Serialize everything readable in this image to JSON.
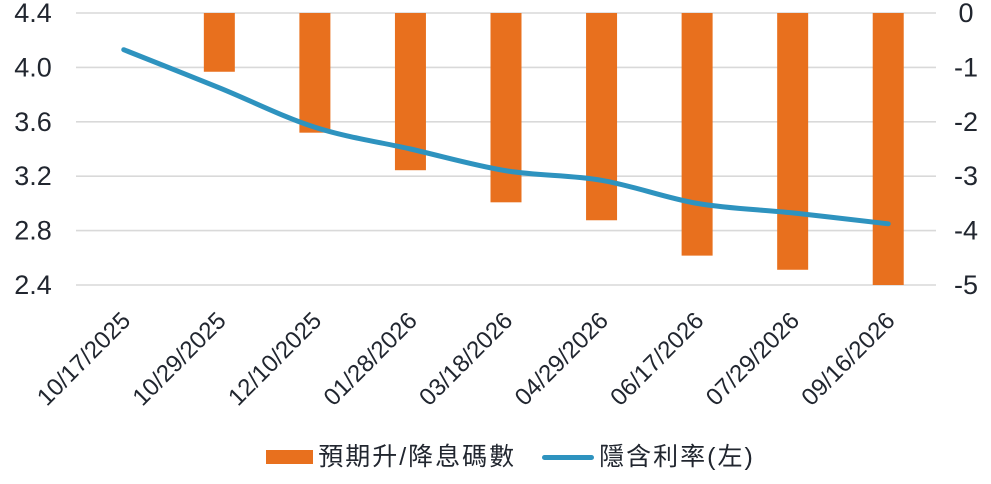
{
  "chart_data": {
    "type": "bar",
    "subtype": "combo-bar-line",
    "title": "",
    "categories": [
      "10/17/2025",
      "10/29/2025",
      "12/10/2025",
      "01/28/2026",
      "03/18/2026",
      "04/29/2026",
      "06/17/2026",
      "07/29/2026",
      "09/16/2026"
    ],
    "series": [
      {
        "name": "預期升/降息碼數",
        "type": "bar",
        "axis": "right",
        "values": [
          0,
          -1.08,
          -2.2,
          -2.89,
          -3.48,
          -3.81,
          -4.46,
          -4.72,
          -5.0
        ]
      },
      {
        "name": "隱含利率(左)",
        "type": "line",
        "axis": "left",
        "values": [
          4.13,
          3.85,
          3.56,
          3.4,
          3.24,
          3.17,
          3.0,
          2.93,
          2.85
        ]
      }
    ],
    "left_axis": {
      "min": 2.4,
      "max": 4.4,
      "ticks": [
        "4.4",
        "4.0",
        "3.6",
        "3.2",
        "2.8",
        "2.4"
      ]
    },
    "right_axis": {
      "min": -5,
      "max": 0,
      "ticks": [
        "0",
        "-1",
        "-2",
        "-3",
        "-4",
        "-5"
      ]
    },
    "grid": true,
    "gridlines": "horizontal-only",
    "legend_position": "bottom",
    "x_label_rotation_deg": -45
  },
  "legend": {
    "bar_label": "預期升/降息碼數",
    "line_label": "隱含利率(左)"
  },
  "colors": {
    "bar": "#E8701E",
    "line": "#2E93BF",
    "grid": "#D9D9D9",
    "text": "#21262F"
  }
}
